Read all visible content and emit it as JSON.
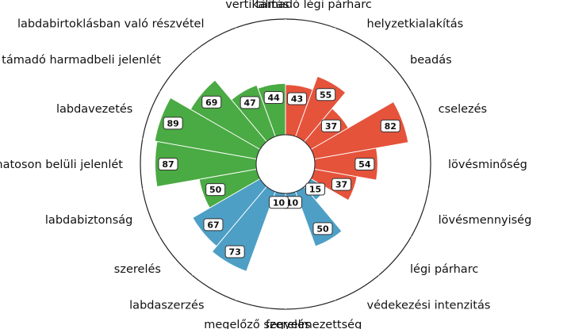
{
  "chart_data": {
    "type": "pie",
    "subtype": "polar-bar",
    "radial_max": 100,
    "colors": {
      "attack": "#e5533b",
      "possession": "#4aaa43",
      "defense": "#4d9fc6",
      "circle_stroke": "#222222",
      "separator": "#ffffff"
    },
    "categories": [
      "támadó légi párharc",
      "helyzetkialakítás",
      "beadás",
      "cselezés",
      "lövésminőség",
      "lövésmennyiség",
      "légi párharc",
      "védekezési intenzitás",
      "fegyelmezettség",
      "megelőző szerelés",
      "labdaszerzés",
      "szerelés",
      "labdabiztonság",
      "tizenhatoson belüli jelenlét",
      "labdavezetés",
      "támadó harmadbeli jelenlét",
      "labdabirtoklásban való részvétel",
      "vertikalitás"
    ],
    "values": [
      43,
      55,
      37,
      82,
      54,
      37,
      15,
      50,
      10,
      10,
      73,
      67,
      50,
      87,
      89,
      69,
      47,
      44
    ],
    "groups": [
      "attack",
      "attack",
      "attack",
      "attack",
      "attack",
      "attack",
      "defense",
      "defense",
      "defense",
      "defense",
      "defense",
      "defense",
      "possession",
      "possession",
      "possession",
      "possession",
      "possession",
      "possession"
    ]
  }
}
